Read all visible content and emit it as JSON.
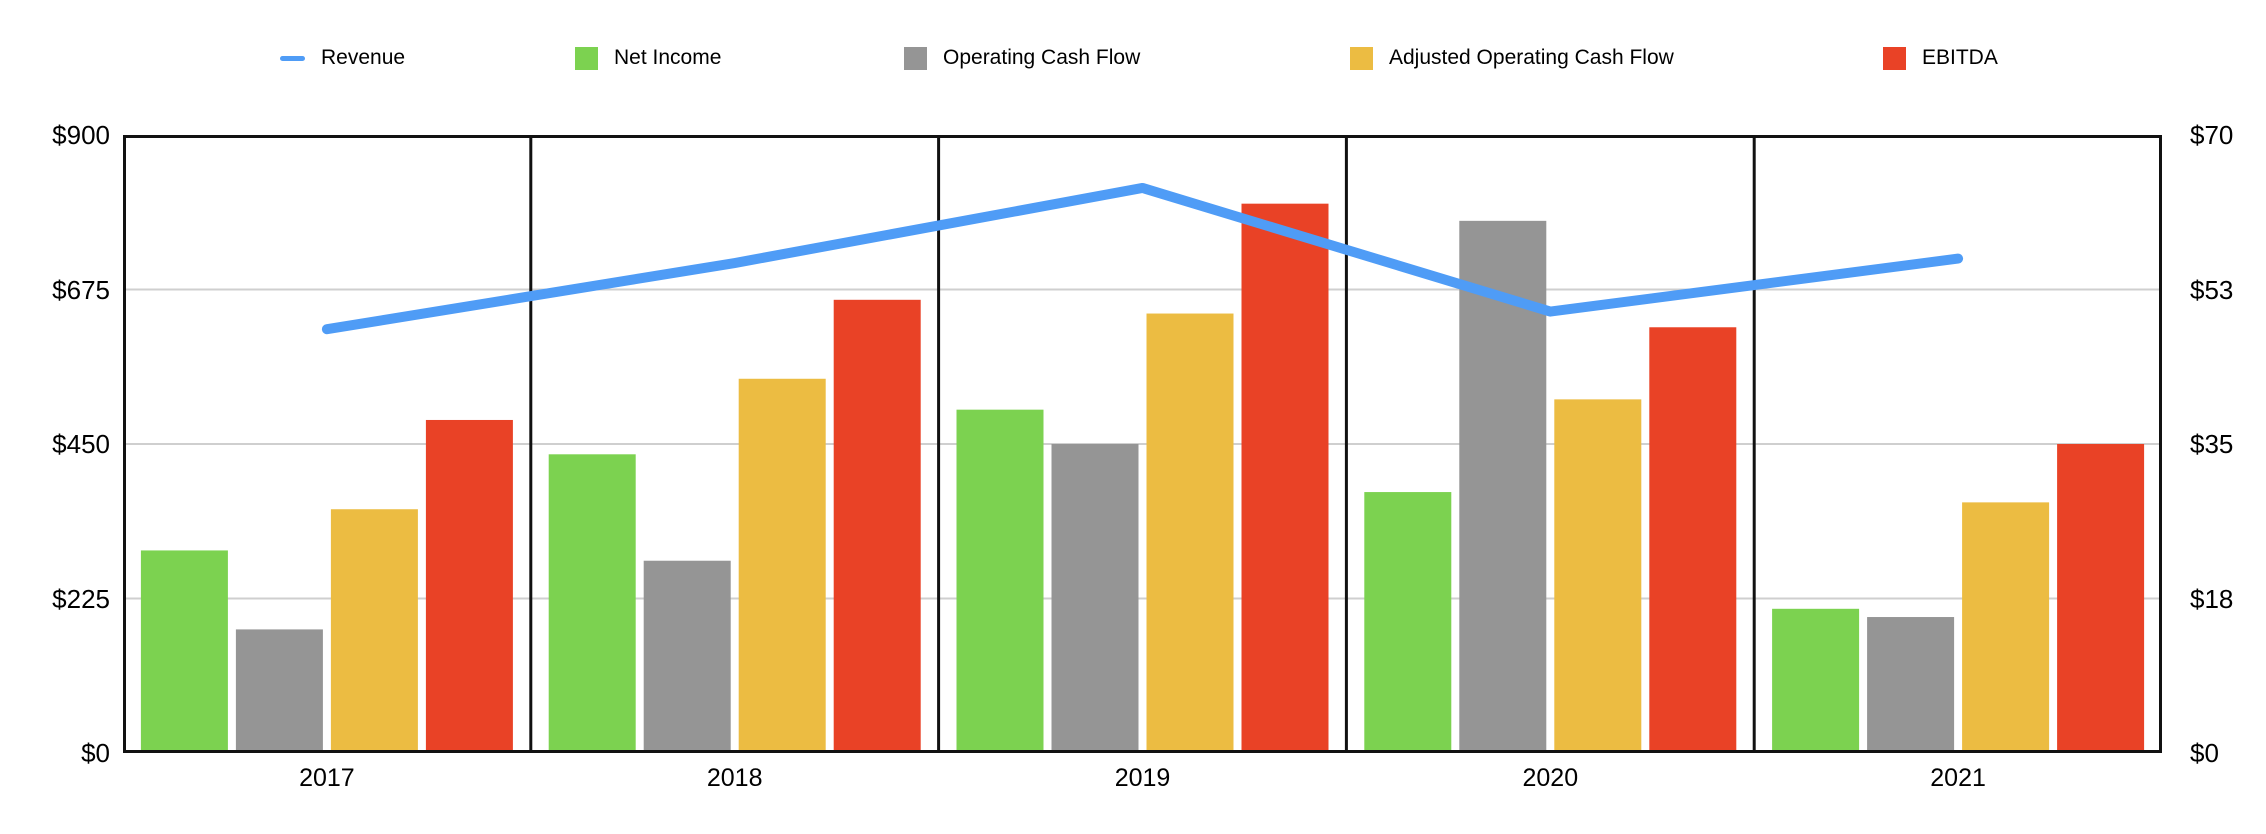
{
  "legend": {
    "items": [
      {
        "label": "Revenue",
        "color": "#4F9CF6",
        "marker": "line"
      },
      {
        "label": "Net Income",
        "color": "#7CD250",
        "marker": "square"
      },
      {
        "label": "Operating Cash Flow",
        "color": "#959595",
        "marker": "square"
      },
      {
        "label": "Adjusted Operating Cash Flow",
        "color": "#ECBC42",
        "marker": "square"
      },
      {
        "label": "EBITDA",
        "color": "#E94226",
        "marker": "square"
      }
    ]
  },
  "chart_data": {
    "type": "bar",
    "subtype": "combo-bar-line",
    "categories": [
      "2017",
      "2018",
      "2019",
      "2020",
      "2021"
    ],
    "series": [
      {
        "name": "Net Income",
        "type": "bar",
        "axis": "left",
        "color": "#7CD250",
        "values": [
          295,
          435,
          500,
          380,
          210
        ]
      },
      {
        "name": "Operating Cash Flow",
        "type": "bar",
        "axis": "left",
        "color": "#959595",
        "values": [
          180,
          280,
          450,
          775,
          198
        ]
      },
      {
        "name": "Adjusted Operating Cash Flow",
        "type": "bar",
        "axis": "left",
        "color": "#ECBC42",
        "values": [
          355,
          545,
          640,
          515,
          365
        ]
      },
      {
        "name": "EBITDA",
        "type": "bar",
        "axis": "left",
        "color": "#E94226",
        "values": [
          485,
          660,
          800,
          620,
          450
        ]
      },
      {
        "name": "Revenue",
        "type": "line",
        "axis": "right",
        "color": "#4F9CF6",
        "values": [
          48,
          55.5,
          64,
          50,
          56
        ]
      }
    ],
    "axes": {
      "left": {
        "min": 0,
        "max": 900,
        "tick_values": [
          0,
          225,
          450,
          675,
          900
        ],
        "tick_labels": [
          "$0",
          "$225",
          "$450",
          "$675",
          "$900"
        ]
      },
      "right": {
        "min": 0,
        "max": 70,
        "tick_values": [
          0,
          17.5,
          35,
          52.5,
          70
        ],
        "tick_labels": [
          "$0",
          "$18",
          "$35",
          "$53",
          "$70"
        ]
      }
    },
    "grid": "horizontal gridlines at left-axis 225/450/675, black frame, vertical black dividers between year groups",
    "legend_position": "top",
    "colors": {
      "frame": "#111111",
      "gridline": "#CFCFCF",
      "background": "#FFFFFF"
    }
  }
}
